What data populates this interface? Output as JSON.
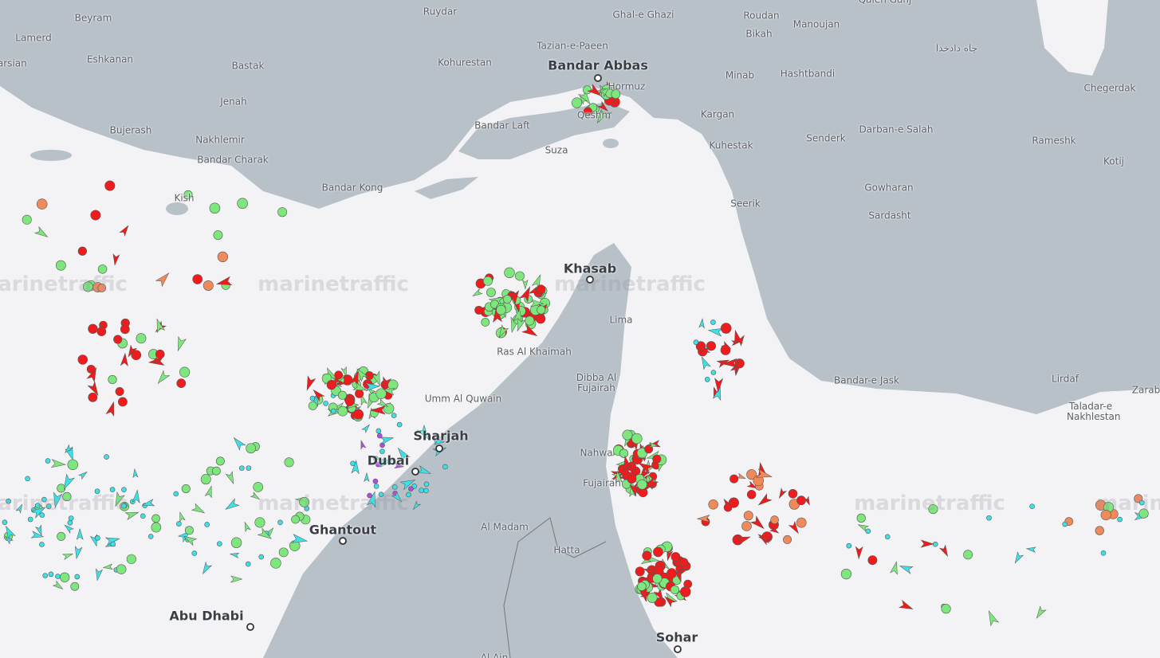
{
  "place_labels": [
    "Beyram",
    "Ruydar",
    "Ghal-e Ghazi",
    "Roudan",
    "Bikah",
    "Manoujan",
    "Qaleh Ganj",
    "Lamerd",
    "Parsian",
    "Eshkanan",
    "Bastak",
    "Tazian-e-Paeen",
    "Kohurestan",
    "Bandar Abbas",
    "Hormuz",
    "Minab",
    "Hashtbandi",
    "چاه دادخدا",
    "Chegerdak",
    "Jenah",
    "Bujerash",
    "Nakhlemir",
    "Bandar Charak",
    "Bandar Laft",
    "Qeshm",
    "Suza",
    "Kargan",
    "Kuhestak",
    "Senderk",
    "Darban-e Salah",
    "Rameshk",
    "Kotij",
    "Gowharan",
    "Sardasht",
    "Seerik",
    "Bandar Kong",
    "Kish",
    "Khasab",
    "Lima",
    "Ras Al Khaimah",
    "Dibba Al Fujairah",
    "Umm Al Quwain",
    "Sharjah",
    "Nahwa",
    "Fujairah",
    "Dubai",
    "Ghantout",
    "Al Madam",
    "Hatta",
    "Abu Dhabi",
    "Sohar",
    "Bandar-e Jask",
    "Lirdaf",
    "Taladar-e Nakhlestan",
    "Zarabad",
    "Al Ain"
  ],
  "watermark": "marinetraffic"
}
